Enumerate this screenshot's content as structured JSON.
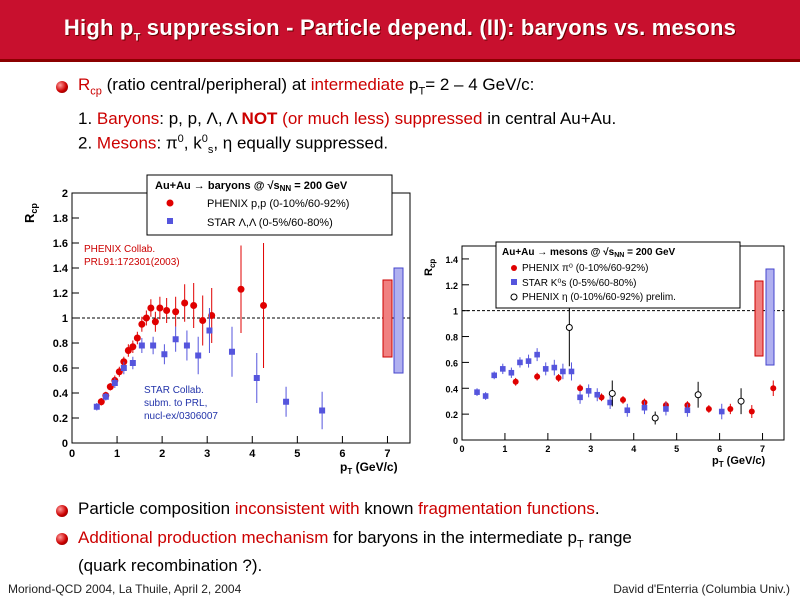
{
  "title": {
    "pre": "High p",
    "sub": "T",
    "post": " suppression - Particle depend. (II): baryons vs. mesons"
  },
  "intro": {
    "r": "R",
    "r_sub": "cp",
    "text1": " (ratio central/peripheral) at ",
    "hl": "intermediate",
    "text2": " p",
    "pt_sub": "T",
    "text3": "= 2 – 4 GeV/c:"
  },
  "baryons_line": {
    "num": "1. ",
    "label": "Baryons",
    "text": ":  p, p, Λ, Λ ",
    "not": "NOT",
    "hl": " (or much less) suppressed",
    "tail": " in central Au+Au."
  },
  "mesons_line": {
    "num": "2. ",
    "label": "Mesons",
    "text1": ":  π",
    "pi_sup": "0",
    "text2": ", k",
    "k_sup": "0",
    "k_sub": "s",
    "text3": ", η   equally suppressed."
  },
  "bullet2": {
    "t1": "Particle composition ",
    "hl1": "inconsistent with",
    "t2": " known ",
    "hl2": "fragmentation functions",
    "t3": "."
  },
  "bullet3": {
    "hl": "Additional production mechanism",
    "t1": " for baryons in the intermediate p",
    "sub": "T",
    "t2": " range",
    "line2": "(quark recombination ?)."
  },
  "footer": {
    "left": "Moriond-QCD 2004, La Thuile, April 2, 2004",
    "right": "David d'Enterria (Columbia Univ.)"
  },
  "colors": {
    "title_bg": "#c8102e",
    "phenix": "#e00000",
    "star": "#5555dd"
  },
  "left_plot": {
    "ylabel": "R",
    "ylabel_sub": "cp",
    "xlabel": "p",
    "xlabel_sub": "T",
    "xlabel_unit": " (GeV/c)",
    "legend_title": "Au+Au → baryons @ √s",
    "legend_title_sub": "NN",
    "legend_title_tail": " = 200 GeV",
    "legend_phenix": "PHENIX p,p (0-10%/60-92%)",
    "legend_star": "STAR Λ,Λ (0-5%/60-80%)",
    "ref1": "PHENIX Collab.",
    "ref2": "PRL91:172301(2003)",
    "star_ref1": "STAR Collab.",
    "star_ref2": "subm. to PRL,",
    "star_ref3": "nucl-ex/0306007",
    "xticks": [
      "0",
      "1",
      "2",
      "3",
      "4",
      "5",
      "6",
      "7"
    ],
    "yticks": [
      "0",
      "0.2",
      "0.4",
      "0.6",
      "0.8",
      "1",
      "1.2",
      "1.4",
      "1.6",
      "1.8",
      "2"
    ]
  },
  "right_plot": {
    "ylabel": "R",
    "ylabel_sub": "cp",
    "xlabel": "p",
    "xlabel_sub": "T",
    "xlabel_unit": " (GeV/c)",
    "legend_title": "Au+Au    → mesons @ √s",
    "legend_title_sub": "NN",
    "legend_title_tail": " = 200 GeV",
    "legend_phenix": "PHENIX  π⁰ (0-10%/60-92%)",
    "legend_star": "STAR K⁰s (0-5%/60-80%)",
    "legend_eta": "PHENIX  η (0-10%/60-92%) prelim.",
    "xticks": [
      "0",
      "1",
      "2",
      "3",
      "4",
      "5",
      "6",
      "7"
    ],
    "yticks": [
      "0",
      "0.2",
      "0.4",
      "0.6",
      "0.8",
      "1",
      "1.2",
      "1.4"
    ]
  },
  "chart_data": [
    {
      "type": "scatter",
      "title": "Au+Au → baryons @ √sNN = 200 GeV",
      "xlabel": "pT (GeV/c)",
      "ylabel": "Rcp",
      "xlim": [
        0,
        7.5
      ],
      "ylim": [
        0,
        2
      ],
      "series": [
        {
          "name": "PHENIX p,p (0-10%/60-92%)",
          "x": [
            0.65,
            0.75,
            0.85,
            0.95,
            1.05,
            1.15,
            1.25,
            1.35,
            1.45,
            1.55,
            1.65,
            1.75,
            1.85,
            1.95,
            2.1,
            2.3,
            2.5,
            2.7,
            2.9,
            3.1,
            3.75,
            4.25
          ],
          "y": [
            0.33,
            0.38,
            0.45,
            0.5,
            0.57,
            0.65,
            0.74,
            0.77,
            0.84,
            0.95,
            1.0,
            1.08,
            0.97,
            1.08,
            1.06,
            1.05,
            1.12,
            1.1,
            0.98,
            1.02,
            1.23,
            1.1
          ],
          "err": [
            0.03,
            0.03,
            0.03,
            0.04,
            0.04,
            0.04,
            0.05,
            0.05,
            0.05,
            0.06,
            0.06,
            0.07,
            0.08,
            0.09,
            0.1,
            0.12,
            0.15,
            0.18,
            0.2,
            0.22,
            0.35,
            0.5
          ]
        },
        {
          "name": "STAR Λ,Λ (0-5%/60-80%)",
          "x": [
            0.55,
            0.75,
            0.95,
            1.15,
            1.35,
            1.55,
            1.8,
            2.05,
            2.3,
            2.55,
            2.8,
            3.05,
            3.55,
            4.1,
            4.75,
            5.55
          ],
          "y": [
            0.29,
            0.37,
            0.48,
            0.6,
            0.64,
            0.78,
            0.78,
            0.71,
            0.83,
            0.78,
            0.7,
            0.9,
            0.73,
            0.52,
            0.33,
            0.26
          ],
          "err": [
            0.03,
            0.03,
            0.04,
            0.05,
            0.05,
            0.06,
            0.07,
            0.08,
            0.1,
            0.12,
            0.15,
            0.18,
            0.2,
            0.2,
            0.12,
            0.15
          ]
        }
      ]
    },
    {
      "type": "scatter",
      "title": "Au+Au → mesons @ √sNN = 200 GeV",
      "xlabel": "pT (GeV/c)",
      "ylabel": "Rcp",
      "xlim": [
        0,
        7.5
      ],
      "ylim": [
        0,
        1.5
      ],
      "series": [
        {
          "name": "PHENIX π⁰ (0-10%/60-92%)",
          "x": [
            1.25,
            1.75,
            2.25,
            2.75,
            3.25,
            3.75,
            4.25,
            4.75,
            5.25,
            5.75,
            6.25,
            6.75,
            7.25
          ],
          "y": [
            0.45,
            0.49,
            0.48,
            0.4,
            0.33,
            0.31,
            0.29,
            0.27,
            0.27,
            0.24,
            0.24,
            0.22,
            0.4
          ],
          "err": [
            0.03,
            0.03,
            0.03,
            0.03,
            0.03,
            0.03,
            0.03,
            0.03,
            0.03,
            0.03,
            0.04,
            0.05,
            0.06
          ]
        },
        {
          "name": "STAR K⁰s (0-5%/60-80%)",
          "x": [
            0.35,
            0.55,
            0.75,
            0.95,
            1.15,
            1.35,
            1.55,
            1.75,
            1.95,
            2.15,
            2.35,
            2.55,
            2.75,
            2.95,
            3.15,
            3.45,
            3.85,
            4.25,
            4.75,
            5.25,
            6.05
          ],
          "y": [
            0.37,
            0.34,
            0.5,
            0.55,
            0.52,
            0.6,
            0.61,
            0.66,
            0.55,
            0.56,
            0.53,
            0.53,
            0.33,
            0.38,
            0.35,
            0.29,
            0.23,
            0.25,
            0.24,
            0.23,
            0.22
          ],
          "err": [
            0.03,
            0.03,
            0.03,
            0.04,
            0.04,
            0.04,
            0.05,
            0.05,
            0.05,
            0.06,
            0.06,
            0.07,
            0.05,
            0.05,
            0.05,
            0.05,
            0.05,
            0.05,
            0.05,
            0.05,
            0.06
          ]
        },
        {
          "name": "PHENIX η (0-10%/60-92%) prelim.",
          "x": [
            2.5,
            3.5,
            4.5,
            5.5,
            6.5
          ],
          "y": [
            0.87,
            0.36,
            0.17,
            0.35,
            0.3
          ],
          "err": [
            0.3,
            0.1,
            0.05,
            0.1,
            0.1
          ]
        }
      ]
    }
  ]
}
